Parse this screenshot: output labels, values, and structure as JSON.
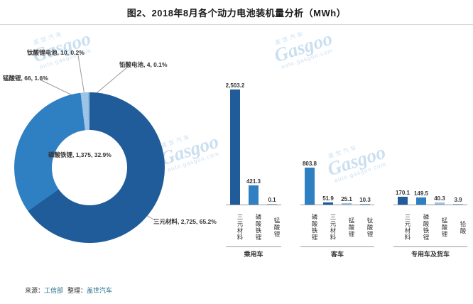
{
  "title": "图2、2018年8月各个动力电池装机量分析（MWh）",
  "source": {
    "prefix": "来源：",
    "org": "工信部",
    "mid": "整理：",
    "brand": "盖世汽车"
  },
  "watermark": {
    "cn": "盖世汽车",
    "brand": "Gasgoo",
    "url": "auto.gasgoo.com"
  },
  "colors": {
    "accent_dark": "#1f5c99",
    "accent_mid": "#2e80c3",
    "accent_light": "#9dc3e6",
    "accent_pale": "#bdd7ee",
    "axis": "#9a9a9a",
    "watermark": "#b9d5ec"
  },
  "chart_data": [
    {
      "type": "pie",
      "subtype": "donut",
      "labels": [
        "三元材料",
        "磷酸铁锂",
        "锰酸锂",
        "钛酸锂电池",
        "铅酸电池"
      ],
      "values": [
        2725,
        1375,
        66,
        10,
        4
      ],
      "percents": [
        65.2,
        32.9,
        1.6,
        0.2,
        0.1
      ],
      "slice_colors": [
        "#1f5c99",
        "#2e80c3",
        "#9dc3e6",
        "#7fb2dc",
        "#bdd7ee"
      ],
      "annotations": [
        "三元材料, 2,725, 65.2%",
        "磷酸铁锂, 1,375, 32.9%",
        "锰酸锂, 66, 1.6%",
        "钛酸锂电池, 10, 0.2%",
        "铅酸电池, 4, 0.1%"
      ],
      "legend_position": "none"
    },
    {
      "type": "bar",
      "ylabel": "",
      "ymax": 2600,
      "grid": false,
      "material_colors": {
        "三元材料": "#1f5c99",
        "磷酸铁锂": "#2e80c3",
        "锰酸锂": "#9dc3e6",
        "钛酸锂": "#7fb2dc",
        "铅酸": "#9dc3e6"
      },
      "groups": [
        {
          "label": "乘用车",
          "bars": [
            {
              "name": "三元材料",
              "display": "2,503.2",
              "value": 2503.2
            },
            {
              "name": "磷酸铁锂",
              "display": "421.3",
              "value": 421.3
            },
            {
              "name": "锰酸锂",
              "display": "0.1",
              "value": 0.1
            }
          ]
        },
        {
          "label": "客车",
          "bars": [
            {
              "name": "磷酸铁锂",
              "display": "803.8",
              "value": 803.8
            },
            {
              "name": "三元材料",
              "display": "51.9",
              "value": 51.9
            },
            {
              "name": "锰酸锂",
              "display": "25.1",
              "value": 25.1
            },
            {
              "name": "钛酸锂",
              "display": "10.3",
              "value": 10.3
            }
          ]
        },
        {
          "label": "专用车及货车",
          "bars": [
            {
              "name": "三元材料",
              "display": "170.1",
              "value": 170.1
            },
            {
              "name": "磷酸铁锂",
              "display": "149.5",
              "value": 149.5
            },
            {
              "name": "锰酸锂",
              "display": "40.3",
              "value": 40.3
            },
            {
              "name": "铅酸",
              "display": "3.9",
              "value": 3.9
            }
          ]
        }
      ]
    }
  ]
}
